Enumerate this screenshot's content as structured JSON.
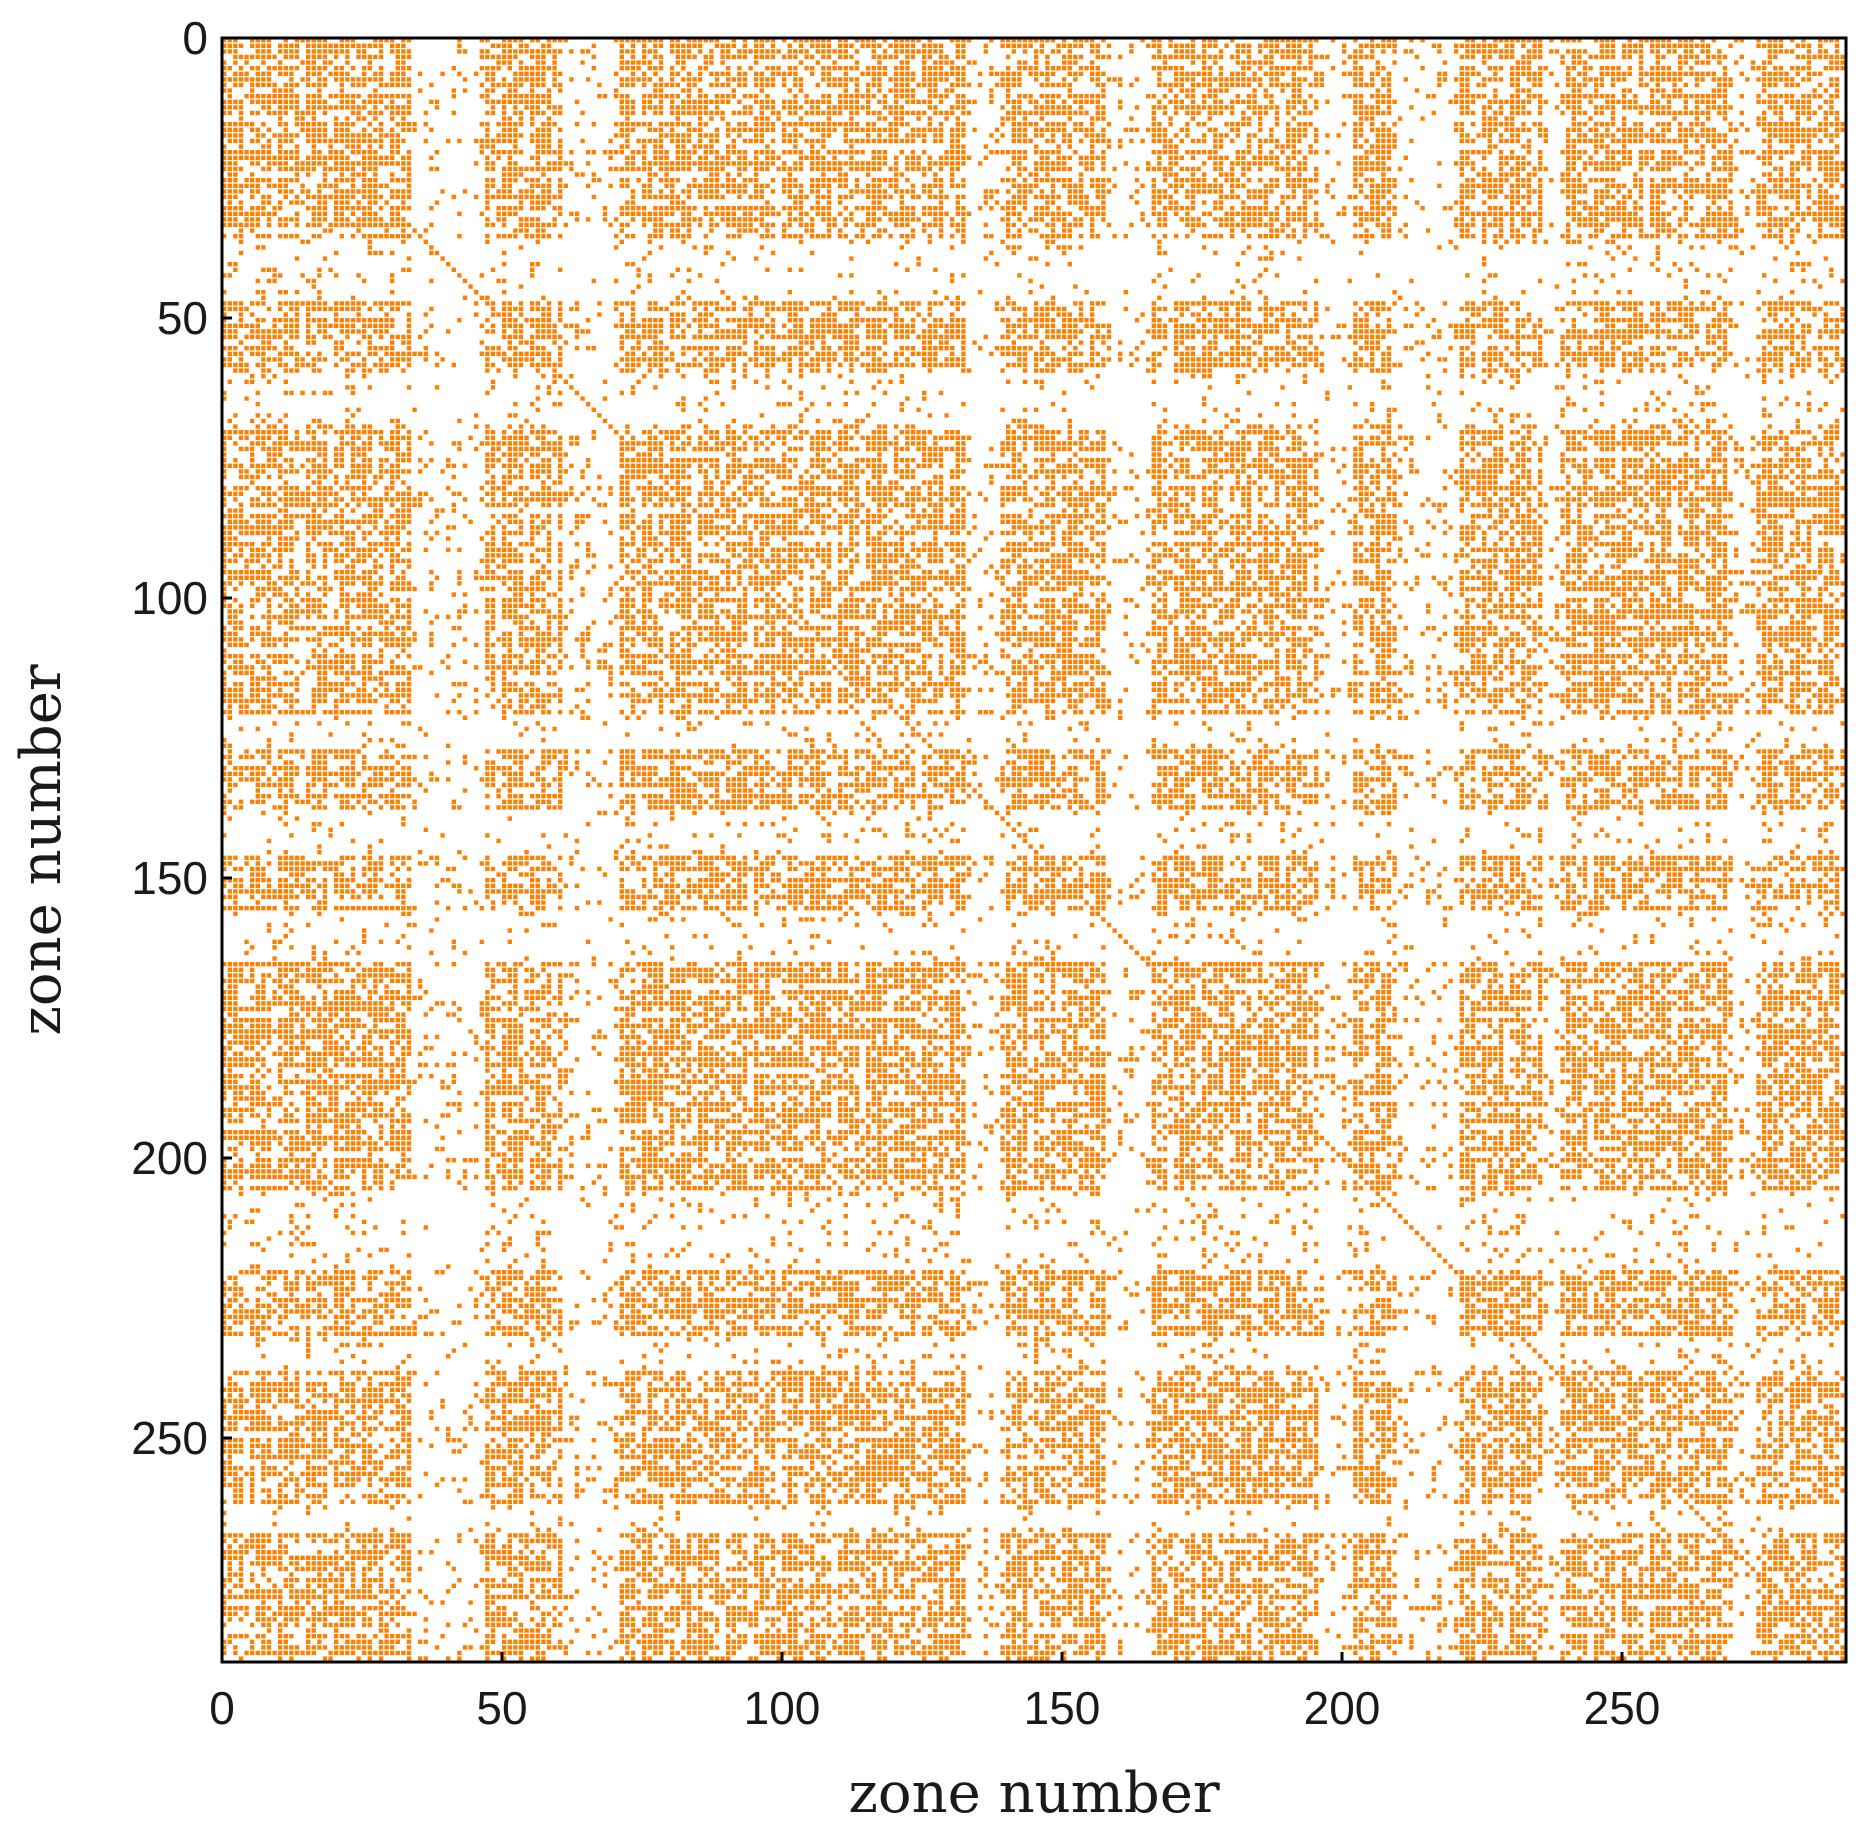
{
  "chart_data": {
    "type": "heatmap",
    "title": "",
    "xlabel": "zone number",
    "ylabel": "zone number",
    "xlim": [
      0,
      290
    ],
    "ylim": [
      290,
      0
    ],
    "x_ticks": [
      "0",
      "50",
      "100",
      "150",
      "200",
      "250"
    ],
    "y_ticks": [
      "0",
      "50",
      "100",
      "150",
      "200",
      "250"
    ],
    "n_zones": 290,
    "marker_color": "#FF7F00",
    "background_color": "#FFFFFF",
    "description_of_values": "binary adjacency / connectivity matrix between zones (1 = connection marked)",
    "sparse_zones": [
      [
        36,
        46
      ],
      [
        60,
        68
      ],
      [
        121,
        126
      ],
      [
        138,
        145
      ],
      [
        156,
        164
      ],
      [
        206,
        219
      ],
      [
        232,
        237
      ],
      [
        262,
        266
      ]
    ],
    "sparse_columns": [
      [
        34,
        46
      ],
      [
        61,
        70
      ],
      [
        133,
        138
      ],
      [
        158,
        165
      ],
      [
        196,
        201
      ],
      [
        210,
        220
      ],
      [
        236,
        238
      ],
      [
        270,
        273
      ]
    ]
  }
}
